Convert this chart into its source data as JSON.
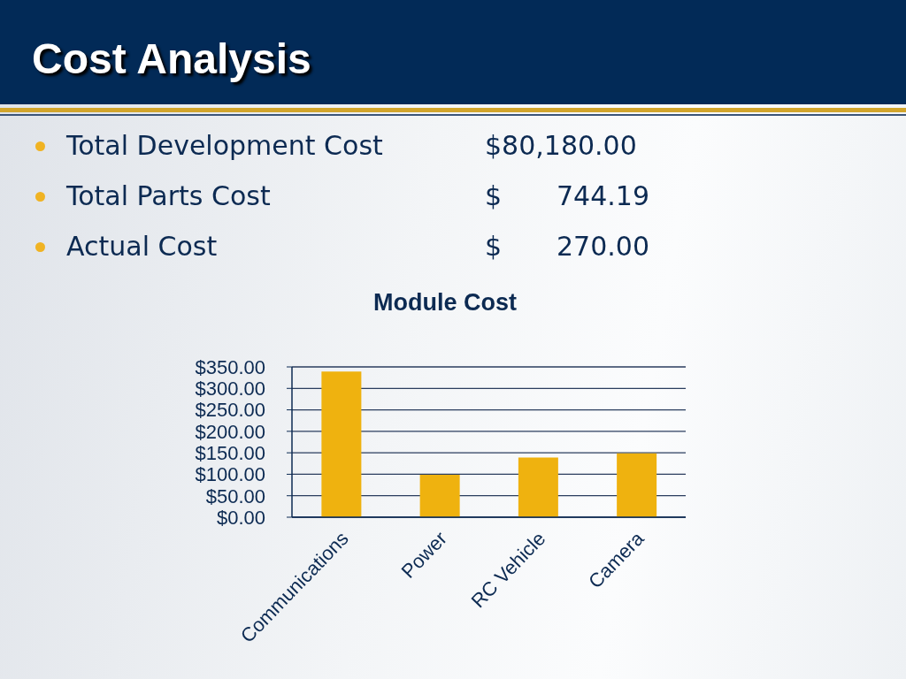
{
  "chart_data": {
    "type": "bar",
    "title": "Module Cost",
    "annotations": [
      "Cost Analysis",
      "Total Development Cost",
      "$80,180.00",
      "Total Parts Cost",
      "$ 744.19",
      "Actual Cost",
      "$ 270.00"
    ],
    "categories": [
      "Communications",
      "Power",
      "RC Vehicle",
      "Camera"
    ],
    "values": [
      339,
      99,
      139,
      149
    ],
    "color": "#efb20f",
    "ylim": [
      0,
      350
    ],
    "yticks": [
      {
        "value": 0,
        "label": "$0.00"
      },
      {
        "value": 50,
        "label": "$50.00"
      },
      {
        "value": 100,
        "label": "$100.00"
      },
      {
        "value": 150,
        "label": "$150.00"
      },
      {
        "value": 200,
        "label": "$200.00"
      },
      {
        "value": 250,
        "label": "$250.00"
      },
      {
        "value": 300,
        "label": "$300.00"
      },
      {
        "value": 350,
        "label": "$350.00"
      }
    ],
    "grid": "y"
  }
}
